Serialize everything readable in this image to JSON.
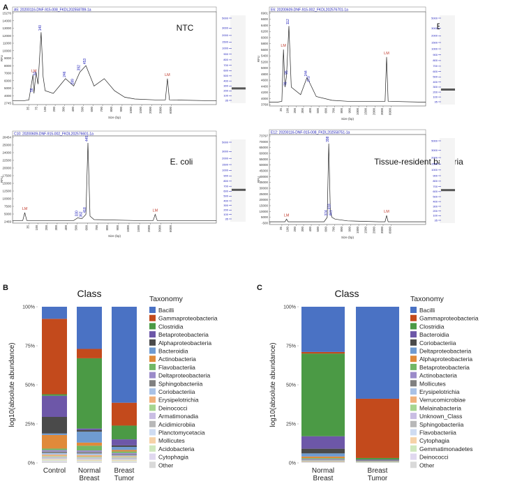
{
  "panel_labels": {
    "a": "A",
    "b": "B",
    "c": "C"
  },
  "electropherograms": [
    {
      "header": "A5: 20200116-DNF-915-008_FKDL202558789-1a",
      "sample": "NTC",
      "ylabel": "RFU",
      "xlabel": "Size (bp)",
      "yticks": [
        "15276",
        "14000",
        "13000",
        "12000",
        "11000",
        "10000",
        "9000",
        "8000",
        "7000",
        "6000",
        "5000",
        "4000",
        "2745"
      ],
      "xticks": [
        "35",
        "75",
        "100",
        "200",
        "300",
        "400",
        "500",
        "600",
        "700",
        "800",
        "900",
        "1000",
        "1500",
        "2000",
        "3000",
        "6000"
      ],
      "lm_labels": [
        "LM",
        "LM"
      ],
      "peak_labels": [
        "56",
        "91",
        "140",
        "246",
        "289",
        "392",
        "453"
      ],
      "ladder_labels": [
        "5000",
        "3000",
        "2000",
        "1500",
        "1000",
        "900",
        "800",
        "700",
        "600",
        "500",
        "400",
        "300",
        "200",
        "100",
        "35"
      ],
      "trace": [
        [
          0,
          0.04
        ],
        [
          0.05,
          0.04
        ],
        [
          0.08,
          0.05
        ],
        [
          0.1,
          0.32
        ],
        [
          0.105,
          0.12
        ],
        [
          0.115,
          0.35
        ],
        [
          0.125,
          0.22
        ],
        [
          0.14,
          0.78
        ],
        [
          0.15,
          0.3
        ],
        [
          0.16,
          0.15
        ],
        [
          0.2,
          0.12
        ],
        [
          0.23,
          0.2
        ],
        [
          0.26,
          0.28
        ],
        [
          0.3,
          0.2
        ],
        [
          0.33,
          0.35
        ],
        [
          0.36,
          0.42
        ],
        [
          0.4,
          0.2
        ],
        [
          0.45,
          0.28
        ],
        [
          0.5,
          0.15
        ],
        [
          0.55,
          0.08
        ],
        [
          0.6,
          0.06
        ],
        [
          0.7,
          0.05
        ],
        [
          0.75,
          0.05
        ],
        [
          0.76,
          0.28
        ],
        [
          0.77,
          0.05
        ],
        [
          1,
          0.04
        ]
      ]
    },
    {
      "header": "E6: 20200609-DNF-915-002_FKDL202576701-1a",
      "sample": "EBC",
      "ylabel": "RFU",
      "xlabel": "Size (bp)",
      "yticks": [
        "6901",
        "6600",
        "6400",
        "6200",
        "6000",
        "5800",
        "5600",
        "5400",
        "5200",
        "5000",
        "4800",
        "4600",
        "4400",
        "4200",
        "4000",
        "3768"
      ],
      "xticks": [
        "35",
        "100",
        "200",
        "300",
        "400",
        "500",
        "600",
        "700",
        "800",
        "900",
        "1000",
        "1500",
        "2000",
        "3000",
        "6000"
      ],
      "lm_labels": [
        "LM",
        "LM"
      ],
      "peak_labels": [
        "78",
        "95",
        "112",
        "244",
        "270"
      ],
      "ladder_labels": [
        "5000",
        "3000",
        "2000",
        "1500",
        "1000",
        "900",
        "800",
        "700",
        "600",
        "500",
        "400",
        "300",
        "200",
        "100",
        "35"
      ],
      "trace": [
        [
          0,
          0.04
        ],
        [
          0.05,
          0.04
        ],
        [
          0.08,
          0.05
        ],
        [
          0.09,
          0.6
        ],
        [
          0.1,
          0.2
        ],
        [
          0.11,
          0.32
        ],
        [
          0.125,
          0.85
        ],
        [
          0.14,
          0.2
        ],
        [
          0.2,
          0.12
        ],
        [
          0.24,
          0.3
        ],
        [
          0.26,
          0.24
        ],
        [
          0.3,
          0.1
        ],
        [
          0.4,
          0.06
        ],
        [
          0.5,
          0.05
        ],
        [
          0.6,
          0.05
        ],
        [
          0.74,
          0.05
        ],
        [
          0.75,
          0.52
        ],
        [
          0.76,
          0.05
        ],
        [
          1,
          0.04
        ]
      ]
    },
    {
      "header": "C10: 20200609-DNF-915-002_FKDL202576601-1a",
      "sample": "E. coli",
      "ylabel": "RFU",
      "xlabel": "Size (bp)",
      "yticks": [
        "28454",
        "25000",
        "24000",
        "22500",
        "20000",
        "17500",
        "15000",
        "12500",
        "10000",
        "7500",
        "5000",
        "2469"
      ],
      "xticks": [
        "35",
        "100",
        "200",
        "300",
        "400",
        "500",
        "600",
        "700",
        "800",
        "900",
        "1000",
        "1500",
        "2000",
        "3000",
        "6000"
      ],
      "lm_labels": [
        "LM",
        "LM"
      ],
      "peak_labels": [
        "330",
        "362",
        "418",
        "445"
      ],
      "ladder_labels": [
        "5000",
        "3000",
        "2000",
        "1500",
        "1000",
        "900",
        "800",
        "700",
        "600",
        "500",
        "400",
        "300",
        "200",
        "100",
        "35"
      ],
      "trace": [
        [
          0,
          0.03
        ],
        [
          0.05,
          0.03
        ],
        [
          0.06,
          0.12
        ],
        [
          0.07,
          0.03
        ],
        [
          0.3,
          0.03
        ],
        [
          0.32,
          0.06
        ],
        [
          0.34,
          0.05
        ],
        [
          0.36,
          0.1
        ],
        [
          0.37,
          0.92
        ],
        [
          0.38,
          0.08
        ],
        [
          0.4,
          0.04
        ],
        [
          0.6,
          0.03
        ],
        [
          0.69,
          0.03
        ],
        [
          0.7,
          0.1
        ],
        [
          0.71,
          0.03
        ],
        [
          1,
          0.03
        ]
      ]
    },
    {
      "header": "E12: 20200116-DNF-915-008_FKDL202558751-1a",
      "sample": "Tissue-resident bacteria",
      "ylabel": "RFU",
      "xlabel": "Size (bp)",
      "yticks": [
        "73797",
        "70000",
        "65000",
        "60000",
        "55000",
        "50000",
        "45000",
        "40000",
        "35000",
        "30000",
        "25000",
        "20000",
        "15000",
        "10000",
        "5000",
        "-500"
      ],
      "xticks": [
        "35",
        "100",
        "200",
        "300",
        "400",
        "500",
        "600",
        "700",
        "800",
        "900",
        "1000",
        "1500",
        "2000",
        "3000",
        "6000"
      ],
      "lm_labels": [
        "LM",
        "LM"
      ],
      "peak_labels": [
        "374",
        "398",
        "418",
        "461"
      ],
      "ladder_labels": [
        "5000",
        "3000",
        "2000",
        "1500",
        "1000",
        "900",
        "800",
        "700",
        "600",
        "500",
        "400",
        "300",
        "200",
        "100",
        "35"
      ],
      "trace": [
        [
          0,
          0.03
        ],
        [
          0.1,
          0.03
        ],
        [
          0.11,
          0.06
        ],
        [
          0.12,
          0.03
        ],
        [
          0.35,
          0.03
        ],
        [
          0.37,
          0.08
        ],
        [
          0.38,
          0.9
        ],
        [
          0.39,
          0.15
        ],
        [
          0.4,
          0.08
        ],
        [
          0.42,
          0.06
        ],
        [
          0.5,
          0.04
        ],
        [
          0.7,
          0.03
        ],
        [
          0.74,
          0.03
        ],
        [
          0.75,
          0.1
        ],
        [
          0.76,
          0.03
        ],
        [
          1,
          0.03
        ]
      ]
    }
  ],
  "chart_data": [
    {
      "type": "bar",
      "stacked": true,
      "title": "Class",
      "xlabel": "",
      "ylabel": "log10(absolute abundance)",
      "ylim": [
        0,
        100
      ],
      "y_ticks": [
        "0%",
        "25%",
        "50%",
        "75%",
        "100%"
      ],
      "categories": [
        "Control",
        "Normal\nBreast",
        "Breast\nTumor"
      ],
      "legend_title": "Taxonomy",
      "legend_placement": "right",
      "series": [
        {
          "name": "Bacilli",
          "color": "#4a72c4",
          "values": [
            8,
            27,
            63
          ]
        },
        {
          "name": "Gammaproteobacteria",
          "color": "#c34a1c",
          "values": [
            50,
            6,
            15
          ]
        },
        {
          "name": "Clostridia",
          "color": "#4b9a45",
          "values": [
            1,
            45,
            9
          ]
        },
        {
          "name": "Betaproteobacteria",
          "color": "#6d57a8",
          "values": [
            14,
            1,
            4
          ]
        },
        {
          "name": "Alphaproteobacteria",
          "color": "#4a4a4a",
          "values": [
            11,
            1,
            1
          ]
        },
        {
          "name": "Bacteroidia",
          "color": "#6f9bd1",
          "values": [
            1,
            7,
            2
          ]
        },
        {
          "name": "Actinobacteria",
          "color": "#e08a3a",
          "values": [
            9,
            2,
            1
          ]
        },
        {
          "name": "Flavobacteriia",
          "color": "#71b765",
          "values": [
            1,
            3,
            1
          ]
        },
        {
          "name": "Deltaproteobacteria",
          "color": "#9b8bc9",
          "values": [
            1,
            1,
            1
          ]
        },
        {
          "name": "Sphingobacteriia",
          "color": "#808080",
          "values": [
            1,
            1,
            0.5
          ]
        },
        {
          "name": "Coriobacteriia",
          "color": "#a9c2e6",
          "values": [
            1,
            1,
            0.5
          ]
        },
        {
          "name": "Erysipelotrichia",
          "color": "#f0b07a",
          "values": [
            1,
            1,
            0.5
          ]
        },
        {
          "name": "Deinococci",
          "color": "#a6d590",
          "values": [
            0.5,
            0.5,
            0.5
          ]
        },
        {
          "name": "Armatimonadia",
          "color": "#c9bde3",
          "values": [
            0.5,
            0.5,
            0.5
          ]
        },
        {
          "name": "Acidimicrobiia",
          "color": "#b8b8b8",
          "values": [
            0.5,
            0.5,
            0.5
          ]
        },
        {
          "name": "Planctomycetacia",
          "color": "#cfdcf2",
          "values": [
            0.5,
            0.5,
            0.5
          ]
        },
        {
          "name": "Mollicutes",
          "color": "#f6d2a8",
          "values": [
            0.5,
            0.5,
            0.5
          ]
        },
        {
          "name": "Acidobacteria",
          "color": "#cfe8be",
          "values": [
            0.5,
            0.5,
            0.5
          ]
        },
        {
          "name": "Cytophagia",
          "color": "#e0d8ef",
          "values": [
            0.5,
            0.5,
            0.5
          ]
        },
        {
          "name": "Other",
          "color": "#d9d9d9",
          "values": [
            1,
            0.5,
            0.5
          ]
        }
      ]
    },
    {
      "type": "bar",
      "stacked": true,
      "title": "Class",
      "xlabel": "",
      "ylabel": "log10(absolute abundance)",
      "ylim": [
        0,
        100
      ],
      "y_ticks": [
        "0%",
        "25%",
        "50%",
        "75%",
        "100%"
      ],
      "categories": [
        "Normal\nBreast",
        "Breast\nTumor"
      ],
      "legend_title": "Taxonomy",
      "legend_placement": "right",
      "series": [
        {
          "name": "Bacilli",
          "color": "#4a72c4",
          "values": [
            29,
            59
          ]
        },
        {
          "name": "Gammaproteobacteria",
          "color": "#c34a1c",
          "values": [
            1,
            38
          ]
        },
        {
          "name": "Clostridia",
          "color": "#4b9a45",
          "values": [
            53,
            1
          ]
        },
        {
          "name": "Bacteroidia",
          "color": "#6d57a8",
          "values": [
            8,
            0.5
          ]
        },
        {
          "name": "Coriobacteriia",
          "color": "#4a4a4a",
          "values": [
            3,
            0.2
          ]
        },
        {
          "name": "Deltaproteobacteria",
          "color": "#6f9bd1",
          "values": [
            2,
            0.2
          ]
        },
        {
          "name": "Alphaproteobacteria",
          "color": "#e08a3a",
          "values": [
            1,
            0.2
          ]
        },
        {
          "name": "Betaproteobacteria",
          "color": "#71b765",
          "values": [
            0.5,
            0.2
          ]
        },
        {
          "name": "Actinobacteria",
          "color": "#9b8bc9",
          "values": [
            0.5,
            0.1
          ]
        },
        {
          "name": "Mollicutes",
          "color": "#808080",
          "values": [
            0.4,
            0.1
          ]
        },
        {
          "name": "Erysipelotrichia",
          "color": "#a9c2e6",
          "values": [
            0.3,
            0.1
          ]
        },
        {
          "name": "Verrucomicrobiae",
          "color": "#f0b07a",
          "values": [
            0.3,
            0.1
          ]
        },
        {
          "name": "Melainabacteria",
          "color": "#a6d590",
          "values": [
            0.2,
            0.1
          ]
        },
        {
          "name": "Unknown_Class",
          "color": "#c9bde3",
          "values": [
            0.2,
            0.05
          ]
        },
        {
          "name": "Sphingobacteriia",
          "color": "#b8b8b8",
          "values": [
            0.2,
            0.05
          ]
        },
        {
          "name": "Flavobacteriia",
          "color": "#cfdcf2",
          "values": [
            0.1,
            0.05
          ]
        },
        {
          "name": "Cytophagia",
          "color": "#f6d2a8",
          "values": [
            0.1,
            0.05
          ]
        },
        {
          "name": "Gemmatimonadetes",
          "color": "#cfe8be",
          "values": [
            0.1,
            0.05
          ]
        },
        {
          "name": "Deinococci",
          "color": "#e0d8ef",
          "values": [
            0.1,
            0.05
          ]
        },
        {
          "name": "Other",
          "color": "#d9d9d9",
          "values": [
            0.1,
            0.05
          ]
        }
      ]
    }
  ]
}
